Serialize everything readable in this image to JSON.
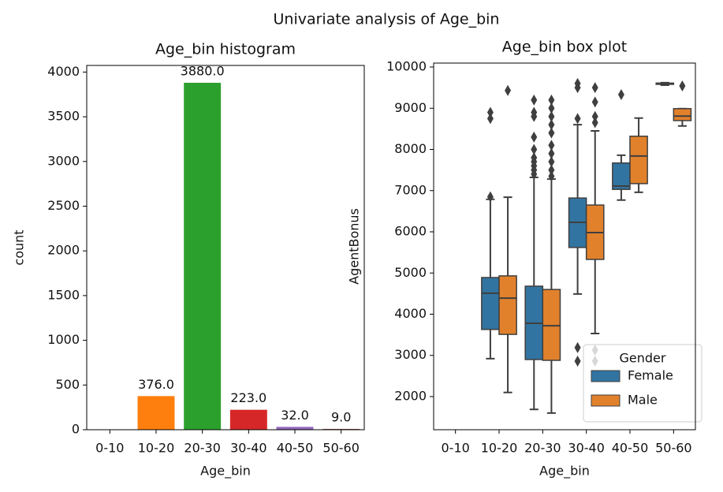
{
  "title": "Univariate analysis of Age_bin",
  "chart_data": [
    {
      "type": "bar",
      "title": "Age_bin histogram",
      "x_label": "Age_bin",
      "y_label": "count",
      "categories": [
        "0-10",
        "10-20",
        "20-30",
        "30-40",
        "40-50",
        "50-60"
      ],
      "values": [
        null,
        376,
        3880,
        223,
        32,
        9
      ],
      "value_labels": [
        null,
        "376.0",
        "3880.0",
        "223.0",
        "32.0",
        "9.0"
      ],
      "colors": [
        "#1f77b4",
        "#ff7f0e",
        "#2ca02c",
        "#d62728",
        "#9467bd",
        "#8c564b"
      ],
      "ylim": [
        0,
        4074
      ],
      "yticks": [
        0,
        500,
        1000,
        1500,
        2000,
        2500,
        3000,
        3500,
        4000
      ],
      "grid": false
    },
    {
      "type": "box",
      "title": "Age_bin box plot",
      "x_label": "Age_bin",
      "y_label": "AgentBonus",
      "categories": [
        "0-10",
        "10-20",
        "20-30",
        "30-40",
        "40-50",
        "50-60"
      ],
      "legend_title": "Gender",
      "legend": "lower right",
      "grid": false,
      "ylim": [
        1196,
        10096
      ],
      "yticks": [
        2000,
        3000,
        4000,
        5000,
        6000,
        7000,
        8000,
        9000,
        10000
      ],
      "series": [
        {
          "name": "Female",
          "color": "#3274a1",
          "boxes": [
            null,
            {
              "low": 2920,
              "q1": 3630,
              "median": 4510,
              "q3": 4890,
              "high": 6790,
              "outliers": [
                6850,
                8750,
                8900
              ]
            },
            {
              "low": 1690,
              "q1": 2900,
              "median": 3780,
              "q3": 4680,
              "high": 7320,
              "outliers": [
                7400,
                7500,
                7600,
                7700,
                7800,
                8000,
                8300,
                8800,
                8900,
                9200
              ]
            },
            {
              "low": 4490,
              "q1": 5620,
              "median": 6230,
              "q3": 6820,
              "high": 8600,
              "outliers": [
                2860,
                3190,
                8750,
                9500,
                9600
              ]
            },
            {
              "low": 6770,
              "q1": 7030,
              "median": 7110,
              "q3": 7670,
              "high": 7860,
              "outliers": [
                9330
              ]
            },
            {
              "low": 9560,
              "q1": 9580,
              "median": 9600,
              "q3": 9610,
              "high": 9620,
              "outliers": []
            }
          ]
        },
        {
          "name": "Male",
          "color": "#e1812c",
          "boxes": [
            null,
            {
              "low": 2100,
              "q1": 3510,
              "median": 4390,
              "q3": 4930,
              "high": 6840,
              "outliers": [
                9430
              ]
            },
            {
              "low": 1600,
              "q1": 2880,
              "median": 3720,
              "q3": 4600,
              "high": 7280,
              "outliers": [
                7350,
                7500,
                7700,
                7900,
                8100,
                8400,
                8600,
                8800,
                9000,
                9200
              ]
            },
            {
              "low": 3530,
              "q1": 5330,
              "median": 5980,
              "q3": 6650,
              "high": 8450,
              "outliers": [
                2860,
                3130,
                8650,
                8800,
                9150,
                9500
              ]
            },
            {
              "low": 6960,
              "q1": 7170,
              "median": 7840,
              "q3": 8320,
              "high": 8760,
              "outliers": []
            },
            {
              "low": 8570,
              "q1": 8700,
              "median": 8810,
              "q3": 8990,
              "high": 8990,
              "outliers": [
                9540
              ]
            }
          ]
        }
      ]
    }
  ]
}
